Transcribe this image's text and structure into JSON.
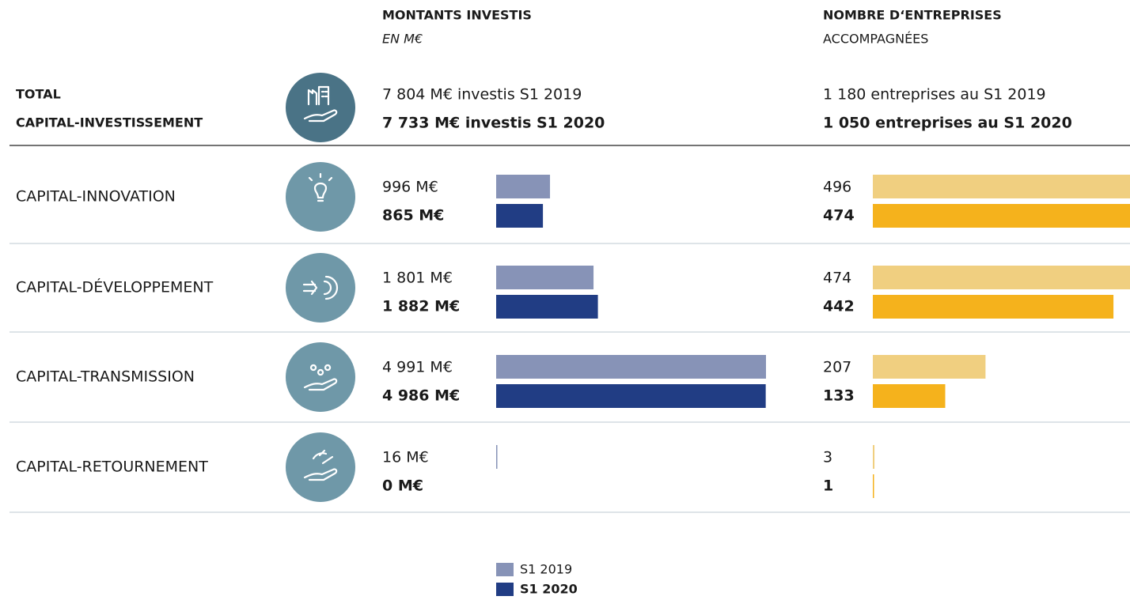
{
  "headers": {
    "amounts_title": "MONTANTS INVESTIS",
    "amounts_unit": "EN M€",
    "companies_title": "NOMBRE D‘ENTREPRISES",
    "companies_subtitle": "ACCOMPAGNÉES"
  },
  "total": {
    "label_lines": [
      "TOTAL",
      "CAPITAL-INVESTISSEMENT"
    ],
    "amounts": [
      "7 804 M€ investis S1 2019",
      "7 733 M€ investis S1 2020"
    ],
    "companies": [
      "1 180 entreprises au S1 2019",
      "1 050 entreprises au S1 2020"
    ]
  },
  "chart_data": [
    {
      "type": "hbar",
      "categories": [
        "CAPITAL-INNOVATION",
        "CAPITAL-DÉVELOPPEMENT",
        "CAPITAL-TRANSMISSION",
        "CAPITAL-RETOURNEMENT"
      ],
      "series": [
        {
          "name": "S1 2019",
          "color": "#8793b7",
          "values": [
            996,
            1801,
            4991,
            16
          ],
          "value_labels": [
            "996 M€",
            "1 801 M€",
            "4 991 M€",
            "16 M€"
          ]
        },
        {
          "name": "S1 2020",
          "color": "#213d84",
          "values": [
            865,
            1882,
            4986,
            0
          ],
          "value_labels": [
            "865 M€",
            "1 882 M€",
            "4 986 M€",
            "0 M€"
          ]
        }
      ]
    },
    {
      "type": "hbar",
      "series": [
        {
          "color": "#f0cf80",
          "values": [
            496,
            474,
            207,
            3
          ]
        },
        {
          "color": "#f5b21c",
          "values": [
            474,
            442,
            133,
            1
          ]
        }
      ]
    }
  ]
}
